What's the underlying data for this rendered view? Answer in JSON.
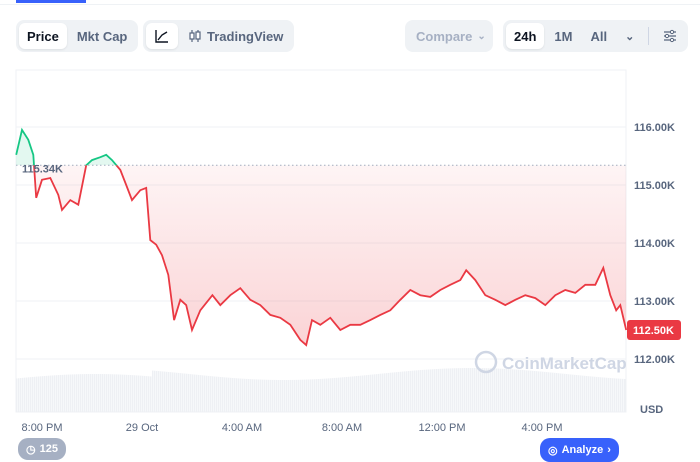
{
  "toolbar": {
    "metric_tabs": [
      {
        "label": "Price",
        "active": true
      },
      {
        "label": "Mkt Cap",
        "active": false
      }
    ],
    "chart_type": {
      "line_icon": "line-chart-icon",
      "tradingview_icon": "candlestick-icon",
      "tradingview_label": "TradingView"
    },
    "compare_label": "Compare",
    "ranges": [
      {
        "label": "24h",
        "active": true
      },
      {
        "label": "1M",
        "active": false
      },
      {
        "label": "All",
        "active": false
      }
    ],
    "settings_icon": "sliders-icon"
  },
  "chart_data": {
    "type": "line",
    "baseline": 115.34,
    "baseline_label": "115.34K",
    "current_label": "112.50K",
    "y_unit": "USD",
    "ylim": [
      111.8,
      117.0
    ],
    "y_ticks": [
      {
        "v": 116,
        "label": "116.00K"
      },
      {
        "v": 115,
        "label": "115.00K"
      },
      {
        "v": 114,
        "label": "114.00K"
      },
      {
        "v": 113,
        "label": "113.00K"
      },
      {
        "v": 112,
        "label": "112.00K"
      }
    ],
    "x_ticks": [
      {
        "t": "28 Oct 20:00",
        "label": "8:00 PM"
      },
      {
        "t": "29 Oct 00:00",
        "label": "29 Oct"
      },
      {
        "t": "29 Oct 04:00",
        "label": "4:00 AM"
      },
      {
        "t": "29 Oct 08:00",
        "label": "8:00 AM"
      },
      {
        "t": "29 Oct 12:00",
        "label": "12:00 PM"
      },
      {
        "t": "29 Oct 16:00",
        "label": "4:00 PM"
      }
    ],
    "colors": {
      "up": "#16c784",
      "down": "#ea3943",
      "current_badge": "#ea3943"
    },
    "series": [
      {
        "points": [
          [
            "28 Oct 18:58",
            115.52
          ],
          [
            "28 Oct 19:12",
            115.95
          ],
          [
            "28 Oct 19:27",
            115.78
          ],
          [
            "28 Oct 19:39",
            115.52
          ],
          [
            "28 Oct 19:46",
            114.78
          ],
          [
            "28 Oct 20:00",
            115.09
          ],
          [
            "28 Oct 20:20",
            115.12
          ],
          [
            "28 Oct 20:39",
            114.83
          ],
          [
            "28 Oct 20:48",
            114.57
          ],
          [
            "28 Oct 21:08",
            114.74
          ],
          [
            "28 Oct 21:27",
            114.66
          ],
          [
            "28 Oct 21:46",
            115.34
          ],
          [
            "28 Oct 22:00",
            115.43
          ],
          [
            "28 Oct 22:20",
            115.48
          ],
          [
            "28 Oct 22:34",
            115.52
          ],
          [
            "28 Oct 22:48",
            115.43
          ],
          [
            "28 Oct 23:08",
            115.26
          ],
          [
            "28 Oct 23:22",
            115.0
          ],
          [
            "28 Oct 23:36",
            114.74
          ],
          [
            "28 Oct 23:56",
            114.91
          ],
          [
            "29 Oct 00:10",
            114.95
          ],
          [
            "29 Oct 00:20",
            114.05
          ],
          [
            "29 Oct 00:34",
            113.97
          ],
          [
            "29 Oct 00:48",
            113.79
          ],
          [
            "29 Oct 01:03",
            113.45
          ],
          [
            "29 Oct 01:17",
            112.67
          ],
          [
            "29 Oct 01:32",
            113.02
          ],
          [
            "29 Oct 01:46",
            112.93
          ],
          [
            "29 Oct 02:00",
            112.5
          ],
          [
            "29 Oct 02:20",
            112.84
          ],
          [
            "29 Oct 02:49",
            113.1
          ],
          [
            "29 Oct 03:08",
            112.93
          ],
          [
            "29 Oct 03:32",
            113.1
          ],
          [
            "29 Oct 03:56",
            113.22
          ],
          [
            "29 Oct 04:20",
            113.02
          ],
          [
            "29 Oct 04:44",
            112.93
          ],
          [
            "29 Oct 05:08",
            112.76
          ],
          [
            "29 Oct 05:32",
            112.71
          ],
          [
            "29 Oct 05:56",
            112.59
          ],
          [
            "29 Oct 06:20",
            112.33
          ],
          [
            "29 Oct 06:34",
            112.24
          ],
          [
            "29 Oct 06:48",
            112.67
          ],
          [
            "29 Oct 07:08",
            112.59
          ],
          [
            "29 Oct 07:32",
            112.71
          ],
          [
            "29 Oct 07:56",
            112.5
          ],
          [
            "29 Oct 08:20",
            112.59
          ],
          [
            "29 Oct 08:44",
            112.59
          ],
          [
            "29 Oct 09:08",
            112.67
          ],
          [
            "29 Oct 09:32",
            112.76
          ],
          [
            "29 Oct 09:56",
            112.84
          ],
          [
            "29 Oct 10:20",
            113.02
          ],
          [
            "29 Oct 10:44",
            113.19
          ],
          [
            "29 Oct 11:08",
            113.1
          ],
          [
            "29 Oct 11:32",
            113.07
          ],
          [
            "29 Oct 11:56",
            113.19
          ],
          [
            "29 Oct 12:20",
            113.28
          ],
          [
            "29 Oct 12:44",
            113.36
          ],
          [
            "29 Oct 12:58",
            113.53
          ],
          [
            "29 Oct 13:20",
            113.36
          ],
          [
            "29 Oct 13:44",
            113.1
          ],
          [
            "29 Oct 14:08",
            113.02
          ],
          [
            "29 Oct 14:32",
            112.93
          ],
          [
            "29 Oct 14:56",
            113.02
          ],
          [
            "29 Oct 15:20",
            113.1
          ],
          [
            "29 Oct 15:44",
            113.05
          ],
          [
            "29 Oct 16:08",
            112.93
          ],
          [
            "29 Oct 16:32",
            113.1
          ],
          [
            "29 Oct 16:56",
            113.19
          ],
          [
            "29 Oct 17:20",
            113.14
          ],
          [
            "29 Oct 17:44",
            113.28
          ],
          [
            "29 Oct 18:08",
            113.28
          ],
          [
            "29 Oct 18:27",
            113.57
          ],
          [
            "29 Oct 18:44",
            113.1
          ],
          [
            "29 Oct 18:58",
            112.84
          ],
          [
            "29 Oct 19:08",
            112.93
          ],
          [
            "29 Oct 19:22",
            112.5
          ]
        ]
      }
    ]
  },
  "watermark": "CoinMarketCap",
  "bottom": {
    "history_count": "125",
    "analyze_label": "Analyze"
  }
}
